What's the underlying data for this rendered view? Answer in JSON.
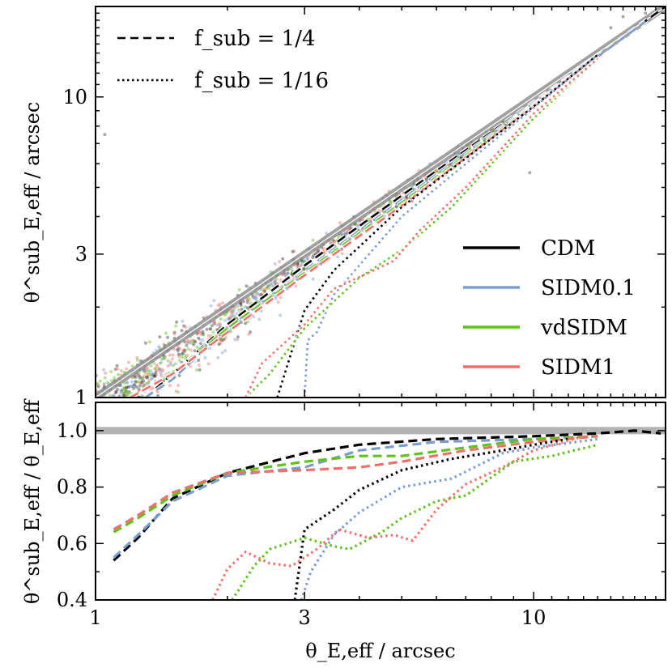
{
  "chart_data": [
    {
      "type": "line",
      "panel": "top",
      "scale": {
        "x": "log",
        "y": "log"
      },
      "xlim": [
        1,
        20
      ],
      "ylim": [
        1,
        20
      ],
      "ylabel": "θ^sub_E,eff / arcsec",
      "yticks": [
        {
          "value": 1,
          "label": "1"
        },
        {
          "value": 3,
          "label": "3"
        },
        {
          "value": 10,
          "label": "10"
        }
      ],
      "legend_styles": [
        {
          "label": "f_sub = 1/4",
          "dash": "dashed"
        },
        {
          "label": "f_sub = 1/16",
          "dash": "dotted"
        }
      ],
      "legend_models": [
        {
          "label": "CDM",
          "color": "#000000"
        },
        {
          "label": "SIDM0.1",
          "color": "#7b9ccf"
        },
        {
          "label": "vdSIDM",
          "color": "#5fc21c"
        },
        {
          "label": "SIDM1",
          "color": "#f0706d"
        }
      ],
      "reference_line": "one-to-one",
      "series": [
        {
          "model": "CDM",
          "dash": "dashed",
          "color": "#000000",
          "x": [
            1.3,
            1.5,
            2.0,
            3.0,
            5.0,
            10.0,
            20.0
          ],
          "y": [
            1.0,
            1.2,
            1.75,
            2.75,
            4.7,
            9.6,
            20.0
          ]
        },
        {
          "model": "SIDM0.1",
          "dash": "dashed",
          "color": "#7b9ccf",
          "x": [
            1.3,
            1.5,
            2.0,
            3.0,
            5.0,
            10.0,
            18.0
          ],
          "y": [
            1.0,
            1.15,
            1.7,
            2.65,
            4.55,
            9.5,
            17.8
          ]
        },
        {
          "model": "vdSIDM",
          "dash": "dashed",
          "color": "#5fc21c",
          "x": [
            1.2,
            1.5,
            2.0,
            3.0,
            5.0,
            10.0,
            14.0
          ],
          "y": [
            1.0,
            1.2,
            1.7,
            2.6,
            4.45,
            9.4,
            13.8
          ]
        },
        {
          "model": "SIDM1",
          "dash": "dashed",
          "color": "#f0706d",
          "x": [
            1.2,
            1.5,
            2.0,
            3.0,
            5.0,
            10.0,
            14.0
          ],
          "y": [
            1.0,
            1.2,
            1.65,
            2.55,
            4.35,
            9.3,
            13.8
          ]
        },
        {
          "model": "CDM",
          "dash": "dotted",
          "color": "#000000",
          "x": [
            2.6,
            2.75,
            3.0,
            3.5,
            5.0,
            10.0,
            14.0
          ],
          "y": [
            1.0,
            1.3,
            1.95,
            2.65,
            4.3,
            9.3,
            13.8
          ]
        },
        {
          "model": "SIDM0.1",
          "dash": "dotted",
          "color": "#7b9ccf",
          "x": [
            3.0,
            3.05,
            3.2,
            3.5,
            5.0,
            10.0,
            14.0
          ],
          "y": [
            1.0,
            1.55,
            1.65,
            2.2,
            4.0,
            9.2,
            13.8
          ]
        },
        {
          "model": "vdSIDM",
          "dash": "dotted",
          "color": "#5fc21c",
          "x": [
            2.2,
            2.5,
            3.0,
            4.0,
            5.0,
            6.5,
            10.0,
            14.0
          ],
          "y": [
            1.0,
            1.2,
            1.7,
            2.5,
            3.1,
            4.3,
            8.5,
            13.4
          ]
        },
        {
          "model": "SIDM1",
          "dash": "dotted",
          "color": "#f0706d",
          "x": [
            2.2,
            2.4,
            3.0,
            3.5,
            4.2,
            4.8,
            5.5,
            7.0,
            10.0,
            14.0
          ],
          "y": [
            1.0,
            1.3,
            1.75,
            2.3,
            2.6,
            2.85,
            3.6,
            5.0,
            8.8,
            13.4
          ]
        }
      ],
      "scatter": {
        "description": "individual lenses, colored by model",
        "colors": [
          "#000000",
          "#7b9ccf",
          "#5fc21c",
          "#f0706d"
        ]
      }
    },
    {
      "type": "line",
      "panel": "bottom",
      "scale": {
        "x": "log",
        "y": "linear"
      },
      "xlim": [
        1,
        20
      ],
      "ylim": [
        0.4,
        1.1
      ],
      "xlabel": "θ_E,eff / arcsec",
      "ylabel": "θ^sub_E,eff / θ_E,eff",
      "xticks": [
        {
          "value": 1,
          "label": "1"
        },
        {
          "value": 3,
          "label": "3"
        },
        {
          "value": 10,
          "label": "10"
        }
      ],
      "yticks": [
        {
          "value": 0.4,
          "label": "0.4"
        },
        {
          "value": 0.6,
          "label": "0.6"
        },
        {
          "value": 0.8,
          "label": "0.8"
        },
        {
          "value": 1.0,
          "label": "1.0"
        }
      ],
      "reference_line": 1.0,
      "series": [
        {
          "model": "CDM",
          "dash": "dashed",
          "color": "#000000",
          "x": [
            1.1,
            1.25,
            1.5,
            2.0,
            3.0,
            4.0,
            6.0,
            10.0,
            14.0,
            17.0,
            19.5
          ],
          "y": [
            0.54,
            0.62,
            0.76,
            0.85,
            0.92,
            0.95,
            0.97,
            0.98,
            0.99,
            1.0,
            0.99
          ]
        },
        {
          "model": "SIDM0.1",
          "dash": "dashed",
          "color": "#7b9ccf",
          "x": [
            1.1,
            1.25,
            1.5,
            2.0,
            3.0,
            4.0,
            6.0,
            10.0,
            14.0
          ],
          "y": [
            0.55,
            0.63,
            0.75,
            0.84,
            0.87,
            0.93,
            0.96,
            0.97,
            0.98
          ]
        },
        {
          "model": "vdSIDM",
          "dash": "dashed",
          "color": "#5fc21c",
          "x": [
            1.1,
            1.25,
            1.5,
            2.0,
            3.0,
            4.0,
            5.0,
            7.0,
            10.0,
            14.0
          ],
          "y": [
            0.64,
            0.69,
            0.77,
            0.85,
            0.89,
            0.91,
            0.91,
            0.94,
            0.97,
            0.98
          ]
        },
        {
          "model": "SIDM1",
          "dash": "dashed",
          "color": "#f0706d",
          "x": [
            1.1,
            1.25,
            1.5,
            2.0,
            3.0,
            4.0,
            5.0,
            7.0,
            10.0,
            14.0
          ],
          "y": [
            0.65,
            0.7,
            0.78,
            0.85,
            0.86,
            0.87,
            0.89,
            0.93,
            0.96,
            0.98
          ]
        },
        {
          "model": "CDM",
          "dash": "dotted",
          "color": "#000000",
          "x": [
            2.85,
            3.0,
            3.5,
            4.0,
            5.0,
            6.5,
            8.5,
            10.0,
            12.0
          ],
          "y": [
            0.4,
            0.65,
            0.72,
            0.79,
            0.86,
            0.9,
            0.93,
            0.95,
            0.97
          ]
        },
        {
          "model": "SIDM0.1",
          "dash": "dotted",
          "color": "#7b9ccf",
          "x": [
            2.95,
            3.1,
            3.5,
            4.0,
            5.0,
            6.5,
            8.5,
            10.0,
            14.0
          ],
          "y": [
            0.4,
            0.5,
            0.63,
            0.71,
            0.8,
            0.83,
            0.92,
            0.94,
            0.97
          ]
        },
        {
          "model": "vdSIDM",
          "dash": "dotted",
          "color": "#5fc21c",
          "x": [
            2.05,
            2.3,
            2.5,
            3.0,
            3.5,
            3.8,
            4.5,
            5.0,
            6.0,
            7.0,
            9.0,
            11.0,
            14.0
          ],
          "y": [
            0.4,
            0.52,
            0.58,
            0.62,
            0.59,
            0.58,
            0.64,
            0.69,
            0.75,
            0.77,
            0.89,
            0.91,
            0.95
          ]
        },
        {
          "model": "SIDM1",
          "dash": "dotted",
          "color": "#f0706d",
          "x": [
            1.85,
            2.0,
            2.2,
            2.5,
            2.8,
            3.2,
            3.6,
            4.2,
            4.8,
            5.3,
            6.0,
            7.0,
            8.5,
            10.0,
            13.0
          ],
          "y": [
            0.4,
            0.51,
            0.57,
            0.53,
            0.52,
            0.58,
            0.65,
            0.62,
            0.63,
            0.61,
            0.72,
            0.81,
            0.87,
            0.93,
            0.98
          ]
        }
      ]
    }
  ]
}
